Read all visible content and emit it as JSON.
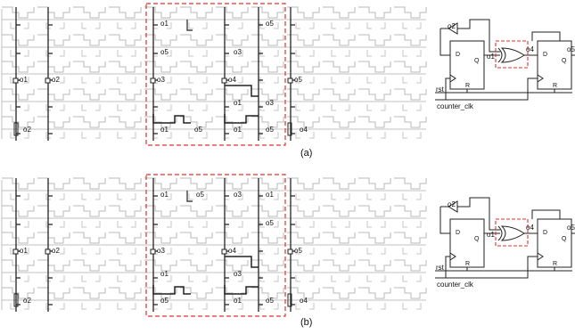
{
  "panels": [
    {
      "caption": "(a)",
      "grid_labels": [
        "o1",
        "o2",
        "o1",
        "o5",
        "o5",
        "o3",
        "o3",
        "o4",
        "o5",
        "o1",
        "o3",
        "o2",
        "o1",
        "o5",
        "o1",
        "o5",
        "o4"
      ],
      "schematic": {
        "top_output": "o2",
        "xor_in": "o1",
        "xor_out": "o4",
        "right_output": "o5",
        "ff1": {
          "d": "D",
          "q": "Q",
          "r": "R"
        },
        "ff2": {
          "d": "D",
          "q": "Q",
          "r": "R"
        },
        "reset_label": "rst",
        "clock_label": "counter_clk"
      }
    },
    {
      "caption": "(b)",
      "grid_labels": [
        "o1",
        "o5",
        "o3",
        "o1",
        "o1",
        "o2",
        "o3",
        "o4",
        "o5",
        "o5",
        "o1",
        "o3",
        "o2",
        "o5",
        "o1",
        "o5",
        "o4"
      ],
      "schematic": {
        "top_output": "o2",
        "xor_in": "o1",
        "xor_out": "o4",
        "right_output": "o5",
        "ff1": {
          "d": "D",
          "q": "Q",
          "r": "R"
        },
        "ff2": {
          "d": "D",
          "q": "Q",
          "r": "R"
        },
        "reset_label": "rst",
        "clock_label": "counter_clk"
      }
    }
  ],
  "colors": {
    "highlight": "#e03030",
    "wire": "#333333",
    "fabric": "#b0b0b0"
  }
}
